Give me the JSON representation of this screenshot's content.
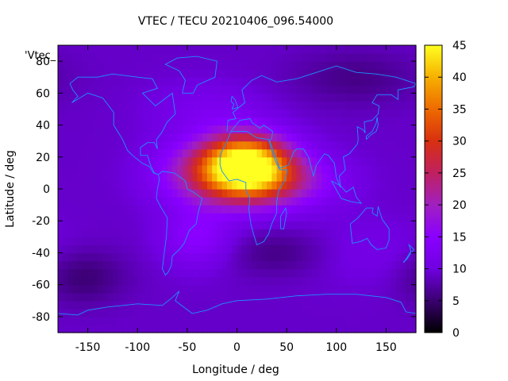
{
  "title": "VTEC / TECU 20210406_096.54000",
  "plot_key_label": "'Vtec_",
  "chart_data": {
    "type": "heatmap",
    "title": "VTEC / TECU 20210406_096.54000",
    "xlabel": "Longitude / deg",
    "ylabel": "Latitude / deg",
    "xlim": [
      -180,
      180
    ],
    "ylim": [
      -90,
      90
    ],
    "x_ticks": [
      -150,
      -100,
      -50,
      0,
      50,
      100,
      150
    ],
    "y_ticks": [
      -80,
      -60,
      -40,
      -20,
      0,
      20,
      40,
      60,
      80
    ],
    "colorbar": {
      "range": [
        0,
        45
      ],
      "ticks": [
        0,
        5,
        10,
        15,
        20,
        25,
        30,
        35,
        40,
        45
      ],
      "palette": [
        "#000000",
        "#3a0070",
        "#7000e0",
        "#8a00ff",
        "#a020c0",
        "#c02060",
        "#d83010",
        "#ee6a00",
        "#f6b000",
        "#ffff20"
      ]
    },
    "blobs": [
      {
        "lon": 10,
        "lat": 15,
        "value": 35,
        "sx": 30,
        "sy": 13
      },
      {
        "lon": -25,
        "lat": 10,
        "value": 13,
        "sx": 38,
        "sy": 14
      },
      {
        "lon": 45,
        "lat": 5,
        "value": 10,
        "sx": 40,
        "sy": 12
      },
      {
        "lon": -40,
        "lat": -30,
        "value": 6,
        "sx": 25,
        "sy": 13
      },
      {
        "lon": 40,
        "lat": -40,
        "value": -3,
        "sx": 35,
        "sy": 10
      },
      {
        "lon": -155,
        "lat": -55,
        "value": -4,
        "sx": 30,
        "sy": 12
      },
      {
        "lon": 135,
        "lat": -40,
        "value": 2,
        "sx": 40,
        "sy": 15
      },
      {
        "lon": 120,
        "lat": 70,
        "value": -3,
        "sx": 45,
        "sy": 12
      },
      {
        "lon": -30,
        "lat": 50,
        "value": 3,
        "sx": 40,
        "sy": 12
      }
    ],
    "background_value": 9,
    "coastline_color": "#1e90ff"
  }
}
